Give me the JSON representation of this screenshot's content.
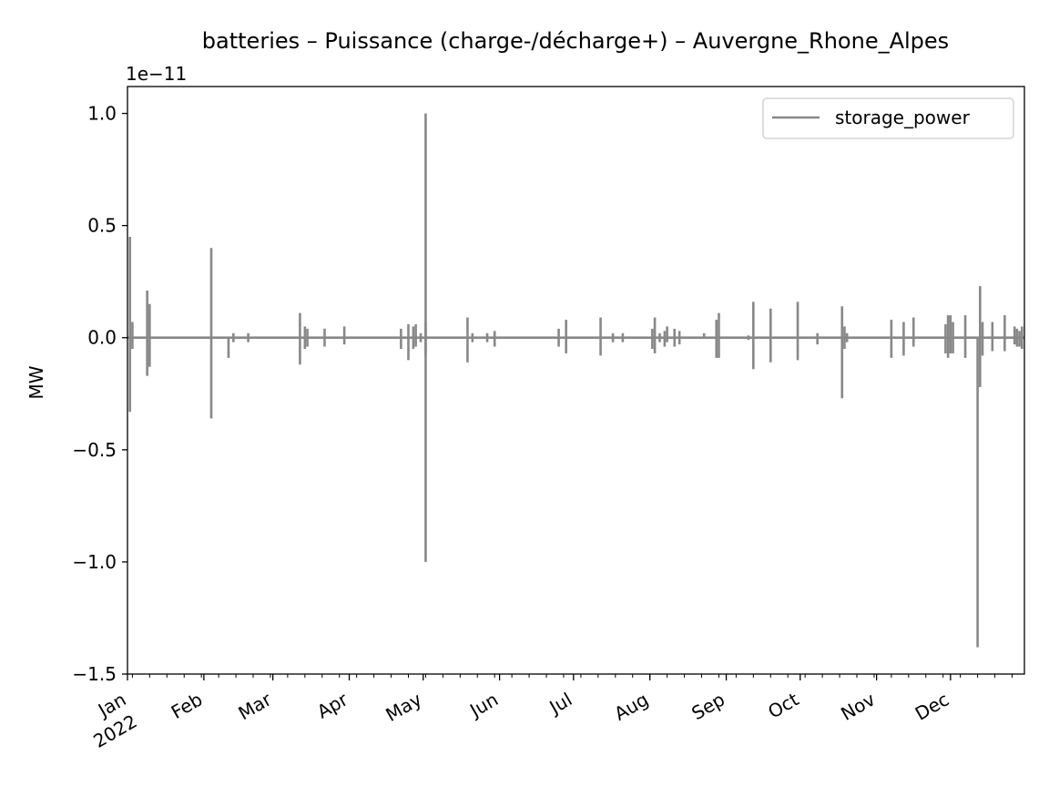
{
  "chart_data": {
    "type": "line",
    "title": "batteries – Puissance (charge-/décharge+) – Auvergne_Rhone_Alpes",
    "ylabel": "MW",
    "xlabel": "",
    "y_offset_label": "1e−11",
    "y_scale": 1e-11,
    "ylim": [
      -1.5,
      1.12
    ],
    "xlim": [
      "2022-01-01",
      "2022-12-31"
    ],
    "yticks": [
      -1.5,
      -1.0,
      -0.5,
      0.0,
      0.5,
      1.0
    ],
    "ytick_labels": [
      "−1.5",
      "−1.0",
      "−0.5",
      "0.0",
      "0.5",
      "1.0"
    ],
    "xticks": [
      {
        "date": "2022-01-01",
        "label": "Jan",
        "label2": "2022"
      },
      {
        "date": "2022-02-01",
        "label": "Feb"
      },
      {
        "date": "2022-03-01",
        "label": "Mar"
      },
      {
        "date": "2022-04-01",
        "label": "Apr"
      },
      {
        "date": "2022-05-01",
        "label": "May"
      },
      {
        "date": "2022-06-01",
        "label": "Jun"
      },
      {
        "date": "2022-07-01",
        "label": "Jul"
      },
      {
        "date": "2022-08-01",
        "label": "Aug"
      },
      {
        "date": "2022-09-01",
        "label": "Sep"
      },
      {
        "date": "2022-10-01",
        "label": "Oct"
      },
      {
        "date": "2022-11-01",
        "label": "Nov"
      },
      {
        "date": "2022-12-01",
        "label": "Dec"
      }
    ],
    "legend": {
      "position": "top-right",
      "entries": [
        "storage_power"
      ]
    },
    "grid": false,
    "series": [
      {
        "name": "storage_power",
        "color": "#888888",
        "baseline": 0.0,
        "spikes": [
          {
            "date": "2022-01-02",
            "min": -0.33,
            "max": 0.45
          },
          {
            "date": "2022-01-03",
            "min": -0.05,
            "max": 0.07
          },
          {
            "date": "2022-01-09",
            "min": -0.17,
            "max": 0.21
          },
          {
            "date": "2022-01-10",
            "min": -0.13,
            "max": 0.15
          },
          {
            "date": "2022-02-04",
            "min": -0.36,
            "max": 0.4
          },
          {
            "date": "2022-02-11",
            "min": -0.09,
            "max": 0.0
          },
          {
            "date": "2022-02-13",
            "min": -0.02,
            "max": 0.02
          },
          {
            "date": "2022-02-19",
            "min": -0.02,
            "max": 0.02
          },
          {
            "date": "2022-03-12",
            "min": -0.12,
            "max": 0.11
          },
          {
            "date": "2022-03-14",
            "min": -0.05,
            "max": 0.05
          },
          {
            "date": "2022-03-15",
            "min": -0.04,
            "max": 0.04
          },
          {
            "date": "2022-03-22",
            "min": -0.04,
            "max": 0.04
          },
          {
            "date": "2022-03-30",
            "min": -0.03,
            "max": 0.05
          },
          {
            "date": "2022-04-22",
            "min": -0.05,
            "max": 0.04
          },
          {
            "date": "2022-04-25",
            "min": -0.1,
            "max": 0.06
          },
          {
            "date": "2022-04-27",
            "min": -0.05,
            "max": 0.05
          },
          {
            "date": "2022-04-28",
            "min": -0.04,
            "max": 0.06
          },
          {
            "date": "2022-04-30",
            "min": -0.02,
            "max": 0.02
          },
          {
            "date": "2022-05-02",
            "min": -1.0,
            "max": 1.0
          },
          {
            "date": "2022-05-02",
            "min": -0.08,
            "max": 0.07
          },
          {
            "date": "2022-05-19",
            "min": -0.11,
            "max": 0.09
          },
          {
            "date": "2022-05-21",
            "min": -0.02,
            "max": 0.02
          },
          {
            "date": "2022-05-27",
            "min": -0.02,
            "max": 0.02
          },
          {
            "date": "2022-05-30",
            "min": -0.04,
            "max": 0.03
          },
          {
            "date": "2022-06-25",
            "min": -0.04,
            "max": 0.04
          },
          {
            "date": "2022-06-28",
            "min": -0.07,
            "max": 0.08
          },
          {
            "date": "2022-07-12",
            "min": -0.08,
            "max": 0.09
          },
          {
            "date": "2022-07-17",
            "min": -0.02,
            "max": 0.02
          },
          {
            "date": "2022-07-21",
            "min": -0.02,
            "max": 0.02
          },
          {
            "date": "2022-08-02",
            "min": -0.05,
            "max": 0.04
          },
          {
            "date": "2022-08-03",
            "min": -0.07,
            "max": 0.09
          },
          {
            "date": "2022-08-05",
            "min": -0.02,
            "max": 0.02
          },
          {
            "date": "2022-08-07",
            "min": -0.04,
            "max": 0.03
          },
          {
            "date": "2022-08-08",
            "min": -0.02,
            "max": 0.05
          },
          {
            "date": "2022-08-11",
            "min": -0.04,
            "max": 0.04
          },
          {
            "date": "2022-08-13",
            "min": -0.03,
            "max": 0.03
          },
          {
            "date": "2022-08-23",
            "min": 0.0,
            "max": 0.02
          },
          {
            "date": "2022-08-28",
            "min": -0.09,
            "max": 0.08
          },
          {
            "date": "2022-08-29",
            "min": -0.09,
            "max": 0.11
          },
          {
            "date": "2022-09-10",
            "min": -0.01,
            "max": 0.01
          },
          {
            "date": "2022-09-12",
            "min": -0.14,
            "max": 0.16
          },
          {
            "date": "2022-09-19",
            "min": -0.11,
            "max": 0.13
          },
          {
            "date": "2022-09-30",
            "min": -0.1,
            "max": 0.16
          },
          {
            "date": "2022-10-08",
            "min": -0.03,
            "max": 0.02
          },
          {
            "date": "2022-10-18",
            "min": -0.27,
            "max": 0.14
          },
          {
            "date": "2022-10-19",
            "min": -0.05,
            "max": 0.05
          },
          {
            "date": "2022-10-20",
            "min": -0.02,
            "max": 0.02
          },
          {
            "date": "2022-11-07",
            "min": -0.09,
            "max": 0.08
          },
          {
            "date": "2022-11-12",
            "min": -0.08,
            "max": 0.07
          },
          {
            "date": "2022-11-16",
            "min": -0.04,
            "max": 0.09
          },
          {
            "date": "2022-11-29",
            "min": -0.07,
            "max": 0.06
          },
          {
            "date": "2022-11-30",
            "min": -0.09,
            "max": 0.1
          },
          {
            "date": "2022-12-01",
            "min": -0.07,
            "max": 0.1
          },
          {
            "date": "2022-12-02",
            "min": -0.07,
            "max": 0.07
          },
          {
            "date": "2022-12-07",
            "min": -0.09,
            "max": 0.1
          },
          {
            "date": "2022-12-12",
            "min": -1.38,
            "max": 0.0
          },
          {
            "date": "2022-12-13",
            "min": -0.22,
            "max": 0.23
          },
          {
            "date": "2022-12-14",
            "min": -0.08,
            "max": 0.07
          },
          {
            "date": "2022-12-18",
            "min": -0.06,
            "max": 0.07
          },
          {
            "date": "2022-12-23",
            "min": -0.06,
            "max": 0.1
          },
          {
            "date": "2022-12-27",
            "min": -0.03,
            "max": 0.05
          },
          {
            "date": "2022-12-28",
            "min": -0.04,
            "max": 0.04
          },
          {
            "date": "2022-12-29",
            "min": -0.04,
            "max": 0.03
          },
          {
            "date": "2022-12-30",
            "min": -0.05,
            "max": 0.05
          }
        ]
      }
    ]
  }
}
